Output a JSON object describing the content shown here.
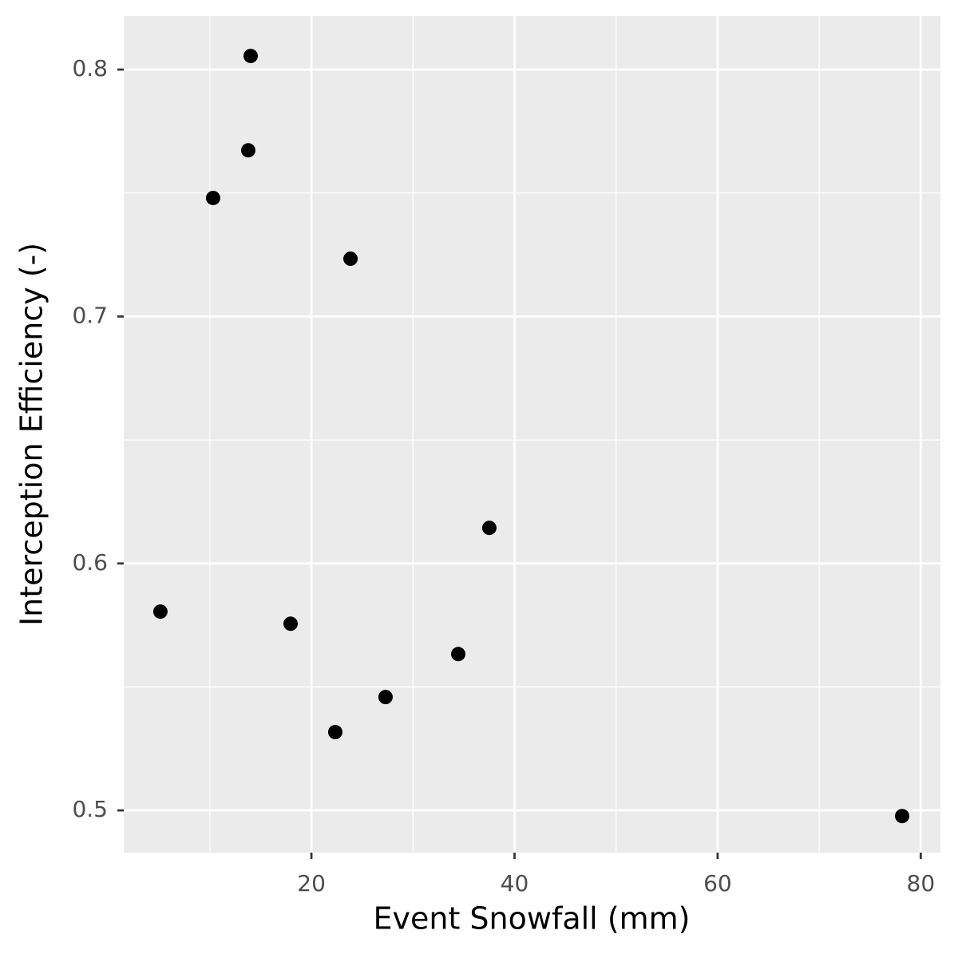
{
  "chart_data": {
    "type": "scatter",
    "x_label": "Event Snowfall (mm)",
    "y_label": "Interception Efficiency (-)",
    "series": [
      {
        "color": "#000000",
        "x": [
          5.13,
          10.32,
          13.78,
          14.02,
          23.85,
          17.95,
          22.35,
          27.3,
          34.46,
          37.52,
          78.17
        ],
        "values": [
          0.5805,
          0.748,
          0.7673,
          0.8055,
          0.7234,
          0.5756,
          0.5317,
          0.5459,
          0.5633,
          0.6144,
          0.4977
        ]
      }
    ],
    "xlim": [
      1.52,
      81.94
    ],
    "ylim": [
      0.4829,
      0.8217
    ],
    "xticks": [
      20,
      40,
      60,
      80
    ],
    "yticks": [
      0.5,
      0.6,
      0.7,
      0.8
    ],
    "minor_xticks": [
      10,
      30,
      50,
      70
    ],
    "minor_yticks": [
      0.55,
      0.65,
      0.75
    ],
    "grid": true,
    "panel_color": "#ebebeb"
  }
}
